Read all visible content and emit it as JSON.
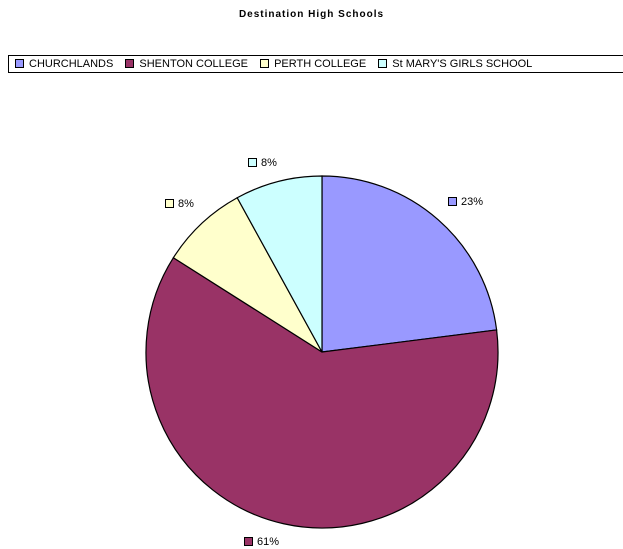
{
  "chart_data": {
    "type": "pie",
    "title": "Destination High Schools",
    "legend_position": "top",
    "slices": [
      {
        "name": "CHURCHLANDS",
        "value": 23,
        "label": "23%",
        "color": "#9999ff"
      },
      {
        "name": "SHENTON COLLEGE",
        "value": 61,
        "label": "61%",
        "color": "#993366"
      },
      {
        "name": "PERTH COLLEGE",
        "value": 8,
        "label": "8%",
        "color": "#ffffcc"
      },
      {
        "name": "St MARY'S GIRLS SCHOOL",
        "value": 8,
        "label": "8%",
        "color": "#ccffff"
      }
    ]
  }
}
